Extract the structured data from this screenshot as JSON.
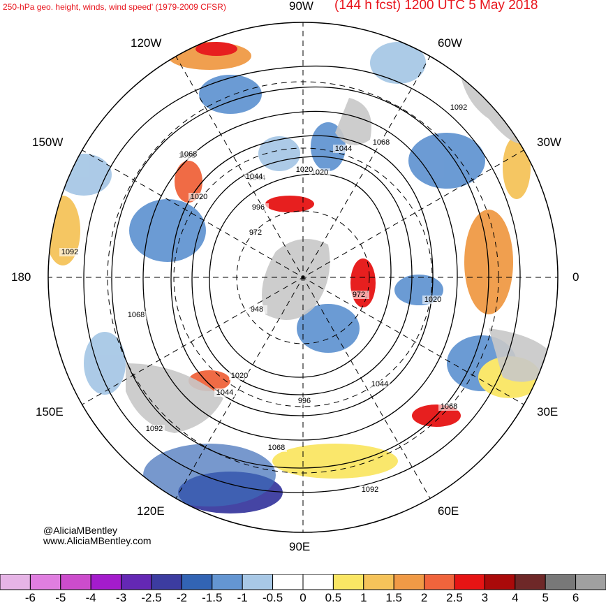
{
  "title": {
    "left": "250-hPa geo. height, winds, wind speed' (1979-2009 CFSR)",
    "right": "(144 h fcst) 1200 UTC 5 May 2018"
  },
  "longitude_labels": {
    "n": "90W",
    "nw": "120W",
    "ne": "60W",
    "wnw": "150W",
    "ene": "30W",
    "w": "180",
    "e": "0",
    "wsw": "150E",
    "ese": "30E",
    "sw": "120E",
    "se": "60E",
    "s": "90E"
  },
  "contour_labels": [
    "1092",
    "1068",
    "1044",
    "1020",
    "996",
    "972",
    "948",
    "1020",
    "1044",
    "1068",
    "1092",
    "972",
    "1020",
    "1044",
    "1068",
    "996",
    "1020",
    "1044",
    "1068",
    "1092",
    "1068",
    "1092",
    "1044",
    "1020",
    "1068"
  ],
  "credits": {
    "handle": "@AliciaMBentley",
    "website": "www.AliciaMBentley.com"
  },
  "colorbar": {
    "labels": [
      "-6",
      "-5",
      "-4",
      "-3",
      "-2.5",
      "-2",
      "-1.5",
      "-1",
      "-0.5",
      "0",
      "0.5",
      "1",
      "1.5",
      "2",
      "2.5",
      "3",
      "4",
      "5",
      "6"
    ],
    "colors": [
      "#e6b4e6",
      "#e07ee0",
      "#cc4ccc",
      "#a41ccc",
      "#6428b4",
      "#3c3ca0",
      "#3264b4",
      "#6496d2",
      "#a8c8e6",
      "#ffffff",
      "#ffffff",
      "#fae664",
      "#f5c35a",
      "#f09a46",
      "#f0643c",
      "#e61414",
      "#aa0a0a",
      "#6e2828",
      "#787878",
      "#a0a0a0"
    ]
  },
  "colors": {
    "title": "#e8141c",
    "land": "#c8c8c8"
  }
}
